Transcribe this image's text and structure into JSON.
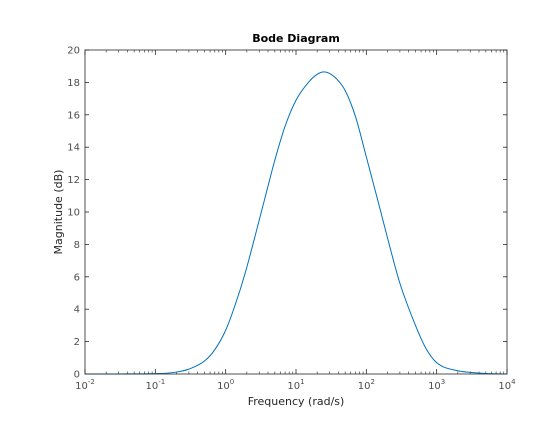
{
  "chart_data": {
    "type": "line",
    "title": "Bode Diagram",
    "xlabel": "Frequency  (rad/s)",
    "ylabel": "Magnitude (dB)",
    "xscale": "log",
    "xlim": [
      0.01,
      10000
    ],
    "ylim": [
      0,
      20
    ],
    "xticks": [
      {
        "base": "10",
        "exp": "-2"
      },
      {
        "base": "10",
        "exp": "-1"
      },
      {
        "base": "10",
        "exp": "0"
      },
      {
        "base": "10",
        "exp": "1"
      },
      {
        "base": "10",
        "exp": "2"
      },
      {
        "base": "10",
        "exp": "3"
      },
      {
        "base": "10",
        "exp": "4"
      }
    ],
    "yticks": [
      0,
      2,
      4,
      6,
      8,
      10,
      12,
      14,
      16,
      18,
      20
    ],
    "grid": false,
    "line_color": "#0072bd",
    "axis_color": "#262626",
    "series": [
      {
        "x": [
          0.01,
          0.03,
          0.05,
          0.1,
          0.2,
          0.3,
          0.5,
          0.7,
          1,
          1.5,
          2,
          3,
          4,
          5,
          7,
          10,
          15,
          20,
          25,
          30,
          40,
          50,
          70,
          100,
          150,
          200,
          300,
          500,
          700,
          1000,
          2000,
          3000,
          5000,
          10000
        ],
        "y": [
          0.0,
          0.0,
          0.01,
          0.02,
          0.12,
          0.3,
          0.8,
          1.5,
          2.7,
          4.8,
          6.6,
          9.5,
          11.6,
          13.2,
          15.3,
          16.9,
          18.0,
          18.5,
          18.65,
          18.55,
          18.1,
          17.5,
          15.9,
          13.4,
          10.5,
          8.4,
          5.6,
          3.0,
          1.6,
          0.7,
          0.2,
          0.1,
          0.03,
          0.0
        ]
      }
    ]
  }
}
